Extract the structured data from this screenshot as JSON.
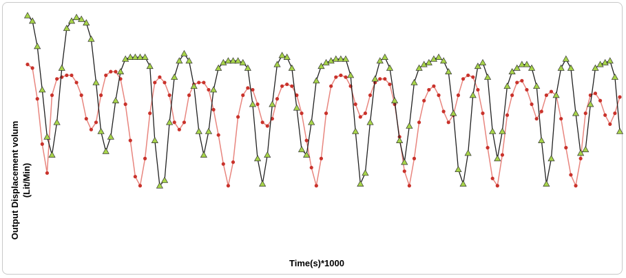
{
  "chart_data": {
    "type": "line",
    "title": "",
    "xlabel": "Time(s)*1000",
    "ylabel_line1": "Output Displacement  volum",
    "ylabel_line2": "(Lit/Min)",
    "ylim": [
      0,
      100
    ],
    "grid": false,
    "legend": "none",
    "series": [
      {
        "color": "#1f1f1f",
        "marker_color": "#a7d44a",
        "marker": "triangle",
        "points": [
          [
            1,
            99
          ],
          [
            2,
            96
          ],
          [
            3,
            82
          ],
          [
            4,
            58
          ],
          [
            5,
            32
          ],
          [
            6,
            22
          ],
          [
            7,
            40
          ],
          [
            8,
            70
          ],
          [
            9,
            92
          ],
          [
            10,
            96
          ],
          [
            11,
            98
          ],
          [
            12,
            97
          ],
          [
            13,
            95
          ],
          [
            14,
            86
          ],
          [
            15,
            62
          ],
          [
            16,
            35
          ],
          [
            17,
            24
          ],
          [
            18,
            32
          ],
          [
            19,
            52
          ],
          [
            20,
            68
          ],
          [
            21,
            75
          ],
          [
            22,
            76
          ],
          [
            23,
            76
          ],
          [
            24,
            76
          ],
          [
            25,
            76
          ],
          [
            26,
            71
          ],
          [
            27,
            30
          ],
          [
            28,
            5
          ],
          [
            29,
            8
          ],
          [
            30,
            40
          ],
          [
            31,
            65
          ],
          [
            32,
            74
          ],
          [
            33,
            78
          ],
          [
            34,
            74
          ],
          [
            35,
            60
          ],
          [
            36,
            35
          ],
          [
            37,
            22
          ],
          [
            38,
            35
          ],
          [
            39,
            58
          ],
          [
            40,
            70
          ],
          [
            41,
            73
          ],
          [
            42,
            74
          ],
          [
            43,
            74
          ],
          [
            44,
            74
          ],
          [
            45,
            73
          ],
          [
            46,
            70
          ],
          [
            47,
            50
          ],
          [
            48,
            20
          ],
          [
            49,
            6
          ],
          [
            50,
            22
          ],
          [
            51,
            50
          ],
          [
            52,
            72
          ],
          [
            53,
            77
          ],
          [
            54,
            76
          ],
          [
            55,
            70
          ],
          [
            56,
            48
          ],
          [
            57,
            25
          ],
          [
            58,
            22
          ],
          [
            59,
            40
          ],
          [
            60,
            63
          ],
          [
            61,
            71
          ],
          [
            62,
            73
          ],
          [
            63,
            74
          ],
          [
            64,
            75
          ],
          [
            65,
            75
          ],
          [
            66,
            75
          ],
          [
            67,
            66
          ],
          [
            68,
            35
          ],
          [
            69,
            6
          ],
          [
            70,
            12
          ],
          [
            71,
            40
          ],
          [
            72,
            64
          ],
          [
            73,
            74
          ],
          [
            74,
            76
          ],
          [
            75,
            70
          ],
          [
            76,
            52
          ],
          [
            77,
            30
          ],
          [
            78,
            18
          ],
          [
            79,
            38
          ],
          [
            80,
            62
          ],
          [
            81,
            70
          ],
          [
            82,
            72
          ],
          [
            83,
            73
          ],
          [
            84,
            75
          ],
          [
            85,
            76
          ],
          [
            86,
            74
          ],
          [
            87,
            68
          ],
          [
            88,
            45
          ],
          [
            89,
            14
          ],
          [
            90,
            6
          ],
          [
            91,
            23
          ],
          [
            92,
            55
          ],
          [
            93,
            71
          ],
          [
            94,
            73
          ],
          [
            95,
            65
          ],
          [
            96,
            35
          ],
          [
            97,
            20
          ],
          [
            98,
            35
          ],
          [
            99,
            60
          ],
          [
            100,
            68
          ],
          [
            101,
            70
          ],
          [
            102,
            72
          ],
          [
            103,
            72
          ],
          [
            104,
            70
          ],
          [
            105,
            60
          ],
          [
            106,
            30
          ],
          [
            107,
            6
          ],
          [
            108,
            20
          ],
          [
            109,
            55
          ],
          [
            110,
            70
          ],
          [
            111,
            75
          ],
          [
            112,
            70
          ],
          [
            113,
            45
          ],
          [
            114,
            23
          ],
          [
            115,
            25
          ],
          [
            116,
            50
          ],
          [
            117,
            70
          ],
          [
            118,
            72
          ],
          [
            119,
            73
          ],
          [
            120,
            74
          ],
          [
            121,
            65
          ],
          [
            122,
            35
          ]
        ]
      },
      {
        "color": "#e8857e",
        "marker_color": "#c9322b",
        "marker": "dot",
        "points": [
          [
            1,
            72
          ],
          [
            2,
            70
          ],
          [
            3,
            53
          ],
          [
            4,
            28
          ],
          [
            5,
            12
          ],
          [
            6,
            55
          ],
          [
            7,
            64
          ],
          [
            8,
            65
          ],
          [
            9,
            66
          ],
          [
            10,
            66
          ],
          [
            11,
            62
          ],
          [
            12,
            55
          ],
          [
            13,
            42
          ],
          [
            14,
            36
          ],
          [
            15,
            40
          ],
          [
            16,
            55
          ],
          [
            17,
            66
          ],
          [
            18,
            68
          ],
          [
            19,
            68
          ],
          [
            20,
            64
          ],
          [
            21,
            50
          ],
          [
            22,
            30
          ],
          [
            23,
            10
          ],
          [
            24,
            5
          ],
          [
            25,
            20
          ],
          [
            26,
            45
          ],
          [
            27,
            62
          ],
          [
            28,
            65
          ],
          [
            29,
            62
          ],
          [
            30,
            55
          ],
          [
            31,
            40
          ],
          [
            32,
            36
          ],
          [
            33,
            40
          ],
          [
            34,
            55
          ],
          [
            35,
            61
          ],
          [
            36,
            62
          ],
          [
            37,
            62
          ],
          [
            38,
            58
          ],
          [
            39,
            47
          ],
          [
            40,
            33
          ],
          [
            41,
            17
          ],
          [
            42,
            5
          ],
          [
            43,
            18
          ],
          [
            44,
            43
          ],
          [
            45,
            55
          ],
          [
            46,
            59
          ],
          [
            47,
            58
          ],
          [
            48,
            50
          ],
          [
            49,
            40
          ],
          [
            50,
            38
          ],
          [
            51,
            42
          ],
          [
            52,
            53
          ],
          [
            53,
            60
          ],
          [
            54,
            61
          ],
          [
            55,
            60
          ],
          [
            56,
            55
          ],
          [
            57,
            45
          ],
          [
            58,
            30
          ],
          [
            59,
            15
          ],
          [
            60,
            5
          ],
          [
            61,
            20
          ],
          [
            62,
            45
          ],
          [
            63,
            60
          ],
          [
            64,
            65
          ],
          [
            65,
            66
          ],
          [
            66,
            65
          ],
          [
            67,
            60
          ],
          [
            68,
            50
          ],
          [
            69,
            43
          ],
          [
            70,
            45
          ],
          [
            71,
            55
          ],
          [
            72,
            62
          ],
          [
            73,
            64
          ],
          [
            74,
            64
          ],
          [
            75,
            61
          ],
          [
            76,
            50
          ],
          [
            77,
            32
          ],
          [
            78,
            13
          ],
          [
            79,
            5
          ],
          [
            80,
            20
          ],
          [
            81,
            40
          ],
          [
            82,
            52
          ],
          [
            83,
            58
          ],
          [
            84,
            60
          ],
          [
            85,
            55
          ],
          [
            86,
            46
          ],
          [
            87,
            40
          ],
          [
            88,
            44
          ],
          [
            89,
            55
          ],
          [
            90,
            64
          ],
          [
            91,
            66
          ],
          [
            92,
            65
          ],
          [
            93,
            58
          ],
          [
            94,
            45
          ],
          [
            95,
            26
          ],
          [
            96,
            9
          ],
          [
            97,
            5
          ],
          [
            98,
            22
          ],
          [
            99,
            44
          ],
          [
            100,
            55
          ],
          [
            101,
            62
          ],
          [
            102,
            63
          ],
          [
            103,
            58
          ],
          [
            104,
            50
          ],
          [
            105,
            42
          ],
          [
            106,
            46
          ],
          [
            107,
            55
          ],
          [
            108,
            57
          ],
          [
            109,
            55
          ],
          [
            110,
            42
          ],
          [
            111,
            26
          ],
          [
            112,
            11
          ],
          [
            113,
            5
          ],
          [
            114,
            20
          ],
          [
            115,
            45
          ],
          [
            116,
            55
          ],
          [
            117,
            56
          ],
          [
            118,
            52
          ],
          [
            119,
            44
          ],
          [
            120,
            39
          ],
          [
            121,
            45
          ],
          [
            122,
            54
          ]
        ]
      }
    ]
  }
}
